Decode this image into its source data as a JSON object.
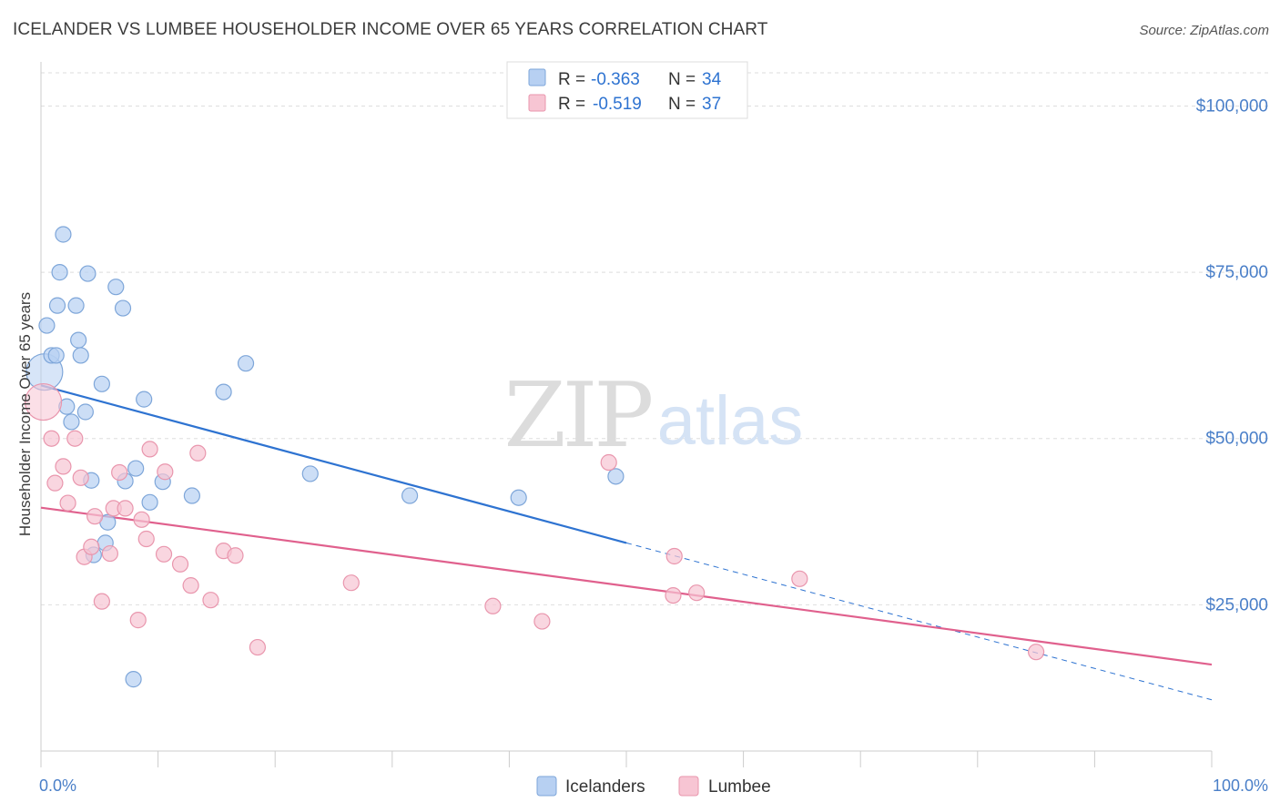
{
  "header": {
    "title": "ICELANDER VS LUMBEE HOUSEHOLDER INCOME OVER 65 YEARS CORRELATION CHART",
    "source": "Source: ZipAtlas.com"
  },
  "watermark": {
    "zip": "ZIP",
    "atlas": "atlas"
  },
  "colors": {
    "icelanders_fill": "#b7d0f2",
    "icelanders_stroke": "#7ea6d9",
    "icelanders_line": "#2e73d1",
    "lumbee_fill": "#f7c5d3",
    "lumbee_stroke": "#e996ad",
    "lumbee_line": "#e0608d",
    "axis_label_color": "#4a7fc8"
  },
  "stats": [
    {
      "r_label": "R = ",
      "r_value": "-0.363",
      "n_label": "N = ",
      "n_value": "34"
    },
    {
      "r_label": "R = ",
      "r_value": "-0.519",
      "n_label": "N = ",
      "n_value": "37"
    }
  ],
  "chart_data": {
    "type": "scatter",
    "title": "ICELANDER VS LUMBEE HOUSEHOLDER INCOME OVER 65 YEARS CORRELATION CHART",
    "xlabel": "",
    "ylabel": "Householder Income Over 65 years",
    "xlim": [
      0,
      100
    ],
    "ylim": [
      3000,
      105000
    ],
    "x_tick_labels": [
      "0.0%",
      "100.0%"
    ],
    "y_ticks": [
      25000,
      50000,
      75000,
      100000
    ],
    "y_tick_labels": [
      "$25,000",
      "$50,000",
      "$75,000",
      "$100,000"
    ],
    "grid": true,
    "legend_position": "bottom-center",
    "series": [
      {
        "name": "Icelanders",
        "points": [
          [
            0.3,
            60000
          ],
          [
            0.5,
            67000
          ],
          [
            0.9,
            62500
          ],
          [
            1.3,
            62500
          ],
          [
            1.4,
            70000
          ],
          [
            1.6,
            75000
          ],
          [
            1.9,
            80700
          ],
          [
            2.2,
            54800
          ],
          [
            2.6,
            52500
          ],
          [
            3.0,
            70000
          ],
          [
            3.2,
            64800
          ],
          [
            3.4,
            62500
          ],
          [
            3.8,
            54000
          ],
          [
            4.0,
            74800
          ],
          [
            4.3,
            43700
          ],
          [
            4.5,
            32500
          ],
          [
            5.2,
            58200
          ],
          [
            5.5,
            34300
          ],
          [
            5.7,
            37400
          ],
          [
            6.4,
            72800
          ],
          [
            7.0,
            69600
          ],
          [
            7.2,
            43600
          ],
          [
            7.9,
            13800
          ],
          [
            8.1,
            45500
          ],
          [
            8.8,
            55900
          ],
          [
            9.3,
            40400
          ],
          [
            10.4,
            43500
          ],
          [
            12.9,
            41400
          ],
          [
            15.6,
            57000
          ],
          [
            17.5,
            61300
          ],
          [
            23.0,
            44700
          ],
          [
            31.5,
            41400
          ],
          [
            40.8,
            41100
          ],
          [
            49.1,
            44300
          ]
        ],
        "trend": {
          "x0": 0,
          "y0": 58000,
          "x1": 50,
          "y1": 34300,
          "dashed_to_x": 100,
          "dashed_to_y": 10700
        }
      },
      {
        "name": "Lumbee",
        "points": [
          [
            0.2,
            55500
          ],
          [
            0.9,
            50000
          ],
          [
            1.2,
            43300
          ],
          [
            1.9,
            45800
          ],
          [
            2.3,
            40300
          ],
          [
            2.9,
            50000
          ],
          [
            3.4,
            44100
          ],
          [
            3.7,
            32200
          ],
          [
            4.3,
            33700
          ],
          [
            4.6,
            38300
          ],
          [
            5.2,
            25500
          ],
          [
            5.9,
            32700
          ],
          [
            6.2,
            39500
          ],
          [
            6.7,
            44900
          ],
          [
            7.2,
            39500
          ],
          [
            8.3,
            22700
          ],
          [
            8.6,
            37800
          ],
          [
            9.0,
            34900
          ],
          [
            9.3,
            48400
          ],
          [
            10.5,
            32600
          ],
          [
            10.6,
            45000
          ],
          [
            11.9,
            31100
          ],
          [
            12.8,
            27900
          ],
          [
            13.4,
            47800
          ],
          [
            14.5,
            25700
          ],
          [
            15.6,
            33100
          ],
          [
            16.6,
            32400
          ],
          [
            18.5,
            18600
          ],
          [
            26.5,
            28300
          ],
          [
            38.6,
            24800
          ],
          [
            42.8,
            22500
          ],
          [
            48.5,
            46400
          ],
          [
            54.0,
            26400
          ],
          [
            54.1,
            32300
          ],
          [
            56.0,
            26800
          ],
          [
            64.8,
            28900
          ],
          [
            85.0,
            17900
          ]
        ],
        "trend": {
          "x0": 0,
          "y0": 39600,
          "x1": 100,
          "y1": 16000
        }
      }
    ]
  }
}
